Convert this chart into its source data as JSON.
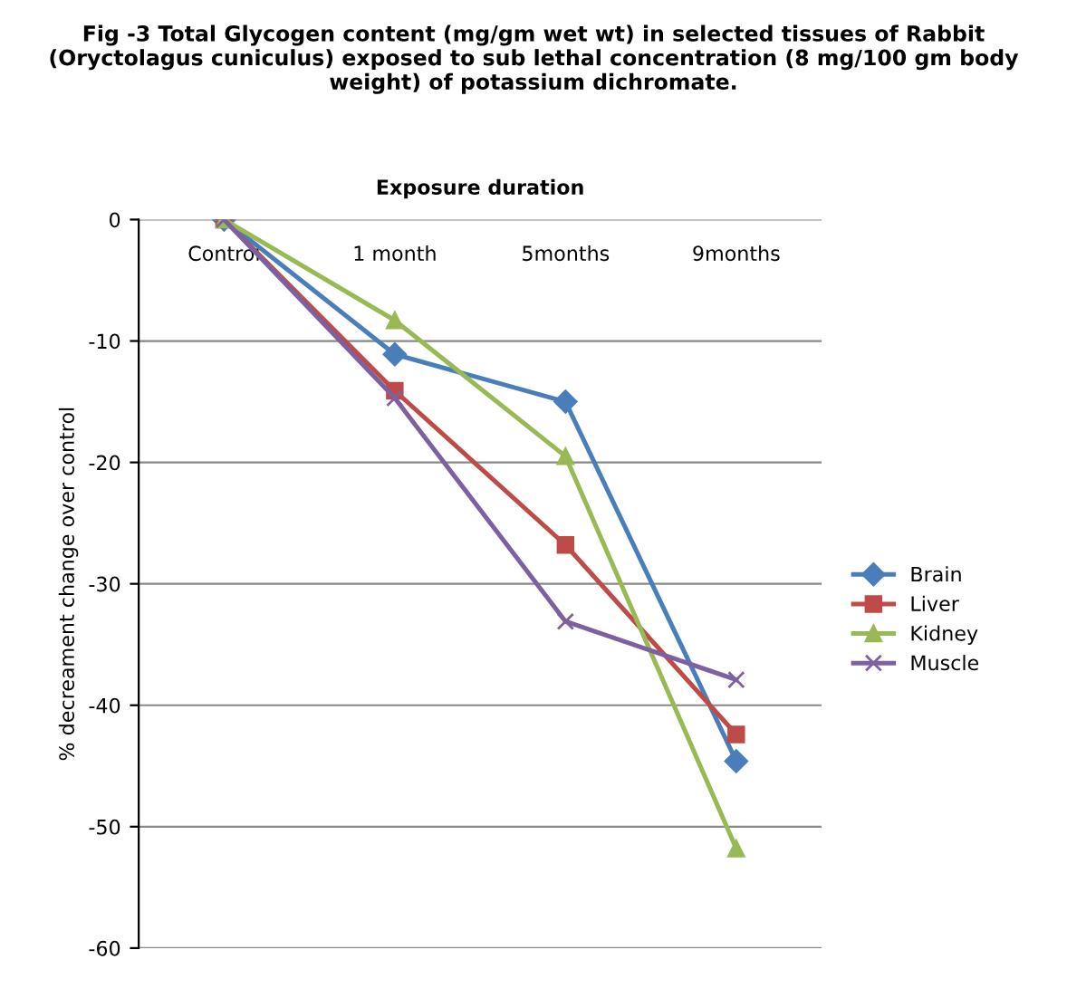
{
  "chart_data": {
    "type": "line",
    "title": "Fig -3 Total Glycogen content (mg/gm wet wt) in selected tissues of Rabbit\n(Oryctolagus cuniculus) exposed to sub lethal concentration (8 mg/100 gm body\nweight) of potassium dichromate.",
    "xlabel": "Exposure duration",
    "ylabel": "% decreament change over control",
    "categories": [
      "Control",
      "1 month",
      "5months",
      "9months"
    ],
    "series": [
      {
        "name": "Brain",
        "color": "#4a7ebb",
        "marker": "diamond",
        "values": [
          0,
          -11.1,
          -15,
          -44.6
        ]
      },
      {
        "name": "Liver",
        "color": "#be4b48",
        "marker": "square",
        "values": [
          0,
          -14.1,
          -26.8,
          -42.4
        ]
      },
      {
        "name": "Kidney",
        "color": "#98b954",
        "marker": "triangle",
        "values": [
          0,
          -8.3,
          -19.5,
          -51.8
        ]
      },
      {
        "name": "Muscle",
        "color": "#7d60a0",
        "marker": "cross",
        "values": [
          0,
          -14.7,
          -33.1,
          -37.9
        ]
      }
    ],
    "ylim": [
      -60,
      0
    ],
    "yticks": [
      -60,
      -50,
      -40,
      -30,
      -20,
      -10,
      0
    ],
    "grid": "y",
    "legend": "right"
  }
}
